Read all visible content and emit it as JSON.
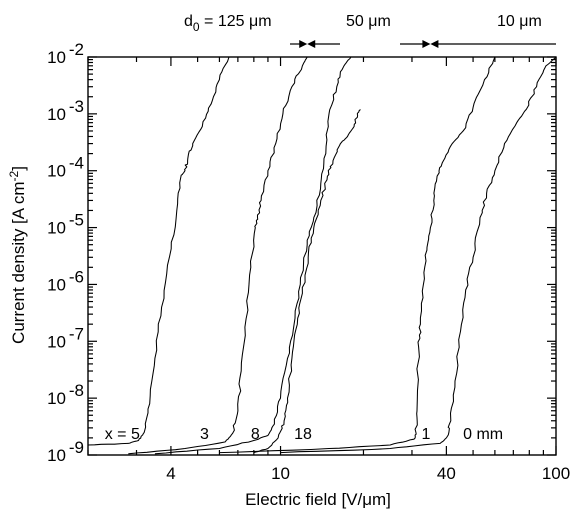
{
  "chart_data": {
    "type": "line",
    "xlabel": "Electric field [V/μm]",
    "ylabel": "Current density [A cm-2]",
    "x_scale": "log",
    "y_scale": "log",
    "xlim": [
      2,
      100
    ],
    "ylim": [
      1e-09,
      0.01
    ],
    "grid": false,
    "legend": "none",
    "x_ticks": [
      {
        "value": 4,
        "label": "4"
      },
      {
        "value": 10,
        "label": "10"
      },
      {
        "value": 40,
        "label": "40"
      },
      {
        "value": 100,
        "label": "100"
      }
    ],
    "y_ticks": [
      {
        "value": 1e-09,
        "base": "10",
        "exp": "-9"
      },
      {
        "value": 1e-08,
        "base": "10",
        "exp": "-8"
      },
      {
        "value": 1e-07,
        "base": "10",
        "exp": "-7"
      },
      {
        "value": 1e-06,
        "base": "10",
        "exp": "-6"
      },
      {
        "value": 1e-05,
        "base": "10",
        "exp": "-5"
      },
      {
        "value": 0.0001,
        "base": "10",
        "exp": "-4"
      },
      {
        "value": 0.001,
        "base": "10",
        "exp": "-3"
      },
      {
        "value": 0.01,
        "base": "10",
        "exp": "-2"
      }
    ],
    "annotations": {
      "d0": "d0 = 125 μm",
      "d1": "50 μm",
      "d2": "10 μm",
      "boundaries_x": [
        12.5,
        35
      ]
    },
    "series": [
      {
        "label": "x = 5",
        "label_at": [
          2.3,
          1.9e-09
        ],
        "points": [
          [
            2.0,
            1.5e-09
          ],
          [
            2.8,
            1.6e-09
          ],
          [
            3.05,
            1.8e-09
          ],
          [
            3.2,
            2.5e-09
          ],
          [
            3.35,
            8e-09
          ],
          [
            3.5,
            5e-08
          ],
          [
            3.7,
            4e-07
          ],
          [
            3.95,
            3e-06
          ],
          [
            4.2,
            2e-05
          ],
          [
            4.35,
            8e-05
          ],
          [
            4.5,
            0.0001
          ],
          [
            4.6,
            0.00015
          ],
          [
            4.8,
            0.0003
          ],
          [
            5.2,
            0.0006
          ],
          [
            5.6,
            0.0015
          ],
          [
            6.0,
            0.004
          ],
          [
            6.5,
            0.01
          ]
        ]
      },
      {
        "label": "3",
        "label_at": [
          5.1,
          1.9e-09
        ],
        "points": [
          [
            2.8,
            1.05e-09
          ],
          [
            4.5,
            1.3e-09
          ],
          [
            6.3,
            1.7e-09
          ],
          [
            6.7,
            2.4e-09
          ],
          [
            7.0,
            6e-09
          ],
          [
            7.2,
            3e-08
          ],
          [
            7.5,
            2.5e-07
          ],
          [
            7.8,
            2e-06
          ],
          [
            8.1,
            1e-05
          ],
          [
            8.25,
            1.5e-05
          ],
          [
            8.5,
            3e-05
          ],
          [
            9.0,
            0.0001
          ],
          [
            9.6,
            0.0003
          ],
          [
            10.2,
            0.001
          ],
          [
            11.0,
            0.003
          ],
          [
            12.0,
            0.007
          ],
          [
            12.5,
            0.01
          ]
        ]
      },
      {
        "label": "8",
        "label_at": [
          7.8,
          1.9e-09
        ],
        "points": [
          [
            3.5,
            1.05e-09
          ],
          [
            6.0,
            1.3e-09
          ],
          [
            8.0,
            1.8e-09
          ],
          [
            9.0,
            2.2e-09
          ],
          [
            9.5,
            3.5e-09
          ],
          [
            10.0,
            1e-08
          ],
          [
            10.6,
            5e-08
          ],
          [
            11.2,
            2e-07
          ],
          [
            11.8,
            1e-06
          ],
          [
            12.5,
            5e-06
          ],
          [
            13.2,
            1.5e-05
          ],
          [
            14.0,
            6e-05
          ],
          [
            14.6,
            0.0002
          ],
          [
            15.0,
            0.001
          ],
          [
            16.0,
            0.003
          ],
          [
            17.0,
            0.007
          ],
          [
            18.0,
            0.01
          ]
        ]
      },
      {
        "label": "18",
        "label_at": [
          11.2,
          1.9e-09
        ],
        "points": [
          [
            8.0,
            1.1e-09
          ],
          [
            9.0,
            1.3e-09
          ],
          [
            9.8,
            2e-09
          ],
          [
            10.3,
            4e-09
          ],
          [
            10.6,
            1e-08
          ],
          [
            11.0,
            5e-08
          ],
          [
            11.5,
            2e-07
          ],
          [
            12.0,
            7e-07
          ],
          [
            12.6,
            3e-06
          ],
          [
            13.2,
            1e-05
          ],
          [
            14.0,
            3e-05
          ],
          [
            14.8,
            8e-05
          ],
          [
            15.5,
            0.00015
          ],
          [
            16.5,
            0.0003
          ],
          [
            17.5,
            0.0004
          ],
          [
            18.5,
            0.0006
          ],
          [
            19.0,
            0.001
          ],
          [
            19.5,
            0.0012
          ]
        ]
      },
      {
        "label": "1",
        "label_at": [
          32.5,
          1.9e-09
        ],
        "points": [
          [
            6.0,
            1.1e-09
          ],
          [
            15.0,
            1.3e-09
          ],
          [
            25.0,
            1.5e-09
          ],
          [
            30.5,
            1.9e-09
          ],
          [
            31.0,
            2.5e-09
          ],
          [
            31.3,
            6e-09
          ],
          [
            31.7,
            8e-08
          ],
          [
            32.2,
            2e-07
          ],
          [
            33.0,
            1e-06
          ],
          [
            34.0,
            4e-06
          ],
          [
            35.0,
            1e-05
          ],
          [
            36.0,
            3e-05
          ],
          [
            37.0,
            8e-05
          ],
          [
            39.0,
            0.00015
          ],
          [
            42.0,
            0.0003
          ],
          [
            46.0,
            0.0005
          ],
          [
            50.0,
            0.0013
          ],
          [
            55.0,
            0.004
          ],
          [
            60.0,
            0.01
          ]
        ]
      },
      {
        "label": "0 mm",
        "label_at": [
          46.0,
          1.9e-09
        ],
        "points": [
          [
            10.0,
            1.1e-09
          ],
          [
            25.0,
            1.3e-09
          ],
          [
            38.0,
            1.6e-09
          ],
          [
            40.0,
            2e-09
          ],
          [
            41.5,
            4e-09
          ],
          [
            43.0,
            2e-08
          ],
          [
            45.0,
            1.5e-07
          ],
          [
            47.0,
            8e-07
          ],
          [
            50.0,
            3e-06
          ],
          [
            53.0,
            1.5e-05
          ],
          [
            56.0,
            4e-05
          ],
          [
            60.0,
            0.0001
          ],
          [
            65.0,
            0.0003
          ],
          [
            72.0,
            0.0007
          ],
          [
            78.0,
            0.0012
          ],
          [
            85.0,
            0.003
          ],
          [
            92.0,
            0.007
          ],
          [
            100.0,
            0.01
          ]
        ]
      }
    ]
  }
}
